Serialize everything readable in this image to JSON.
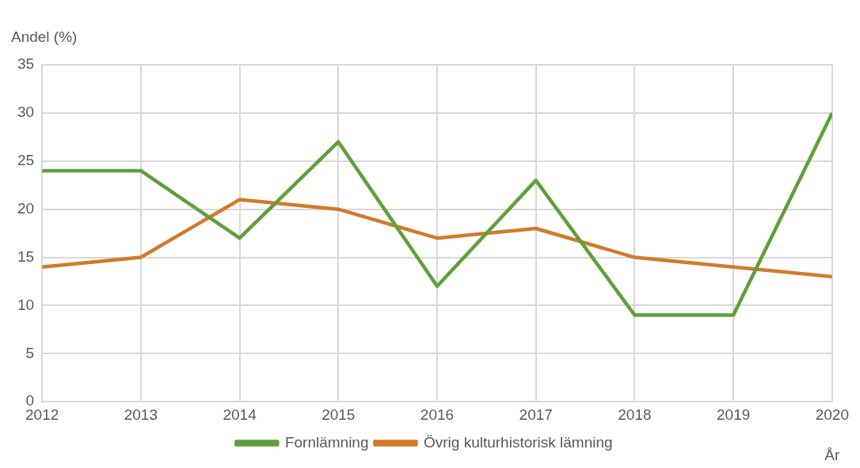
{
  "chart_data": {
    "type": "line",
    "ylabel": "Andel (%)",
    "xlabel": "År",
    "x": [
      2012,
      2013,
      2014,
      2015,
      2016,
      2017,
      2018,
      2019,
      2020
    ],
    "series": [
      {
        "name": "Fornlämning",
        "color": "#5fa03a",
        "values": [
          24,
          24,
          17,
          27,
          12,
          23,
          9,
          9,
          30
        ]
      },
      {
        "name": "Övrig kulturhistorisk lämning",
        "color": "#d17b2b",
        "values": [
          14,
          15,
          21,
          20,
          17,
          18,
          15,
          14,
          13
        ]
      }
    ],
    "xlim": [
      2012,
      2020
    ],
    "xticks": [
      2012,
      2013,
      2014,
      2015,
      2016,
      2017,
      2018,
      2019,
      2020
    ],
    "ylim": [
      0,
      35
    ],
    "yticks": [
      0,
      5,
      10,
      15,
      20,
      25,
      30,
      35
    ],
    "grid": true,
    "legend": "bottom",
    "marker": "none",
    "line_style": "solid"
  }
}
